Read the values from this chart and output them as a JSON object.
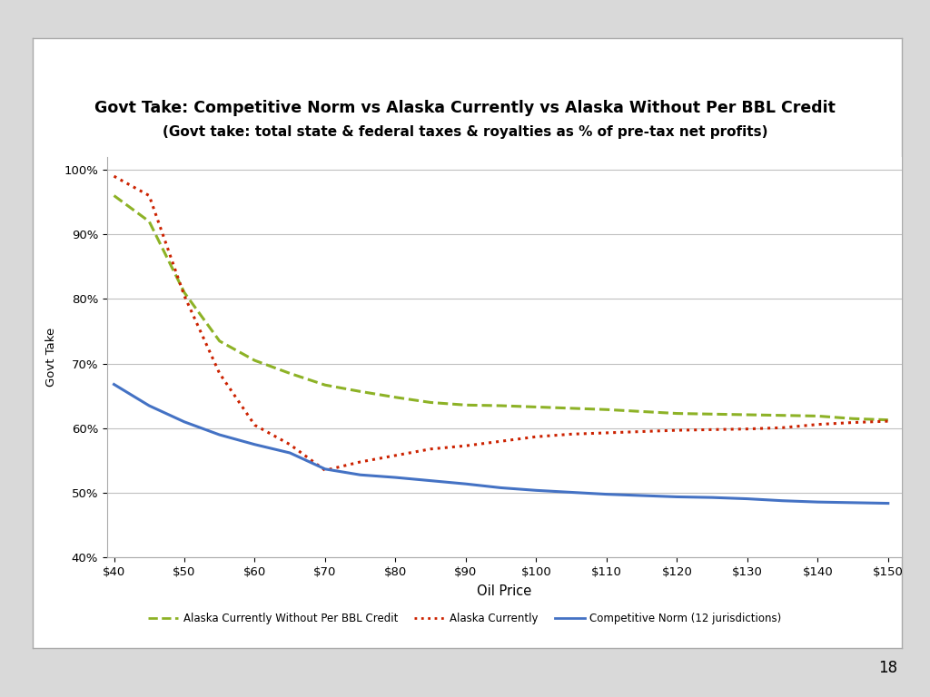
{
  "title_line1": "Govt Take: Competitive Norm vs Alaska Currently vs Alaska Without Per BBL Credit",
  "title_line2": "(Govt take: total state & federal taxes & royalties as % of pre-tax net profits)",
  "xlabel": "Oil Price",
  "ylabel": "Govt Take",
  "ylim": [
    0.4,
    1.02
  ],
  "xlim": [
    39,
    152
  ],
  "y_ticks": [
    0.4,
    0.5,
    0.6,
    0.7,
    0.8,
    0.9,
    1.0
  ],
  "y_tick_labels": [
    "40%",
    "50%",
    "60%",
    "70%",
    "80%",
    "90%",
    "100%"
  ],
  "background_color": "#d9d9d9",
  "chart_bg": "#ffffff",
  "box_bg": "#ffffff",
  "grid_color": "#c0c0c0",
  "series": {
    "alaska_without": {
      "label": "Alaska Currently Without Per BBL Credit",
      "color": "#8db226",
      "linestyle": "--",
      "linewidth": 2.2
    },
    "alaska_currently": {
      "label": "Alaska Currently",
      "color": "#cc2200",
      "linestyle": ":",
      "linewidth": 2.2
    },
    "competitive_norm": {
      "label": "Competitive Norm (12 jurisdictions)",
      "color": "#4472c4",
      "linestyle": "-",
      "linewidth": 2.2
    }
  },
  "x_values": [
    40,
    45,
    50,
    55,
    60,
    65,
    70,
    75,
    80,
    85,
    90,
    95,
    100,
    105,
    110,
    115,
    120,
    125,
    130,
    135,
    140,
    145,
    150
  ],
  "alaska_without_values": [
    0.96,
    0.92,
    0.81,
    0.735,
    0.705,
    0.685,
    0.667,
    0.657,
    0.648,
    0.64,
    0.636,
    0.635,
    0.633,
    0.631,
    0.629,
    0.626,
    0.623,
    0.622,
    0.621,
    0.62,
    0.619,
    0.615,
    0.613
  ],
  "alaska_currently_values": [
    0.99,
    0.96,
    0.805,
    0.685,
    0.605,
    0.575,
    0.535,
    0.548,
    0.558,
    0.568,
    0.573,
    0.58,
    0.587,
    0.591,
    0.593,
    0.595,
    0.597,
    0.598,
    0.599,
    0.601,
    0.606,
    0.609,
    0.611
  ],
  "competitive_norm_values": [
    0.668,
    0.635,
    0.61,
    0.59,
    0.575,
    0.562,
    0.537,
    0.528,
    0.524,
    0.519,
    0.514,
    0.508,
    0.504,
    0.501,
    0.498,
    0.496,
    0.494,
    0.493,
    0.491,
    0.488,
    0.486,
    0.485,
    0.484
  ],
  "page_number": "18"
}
